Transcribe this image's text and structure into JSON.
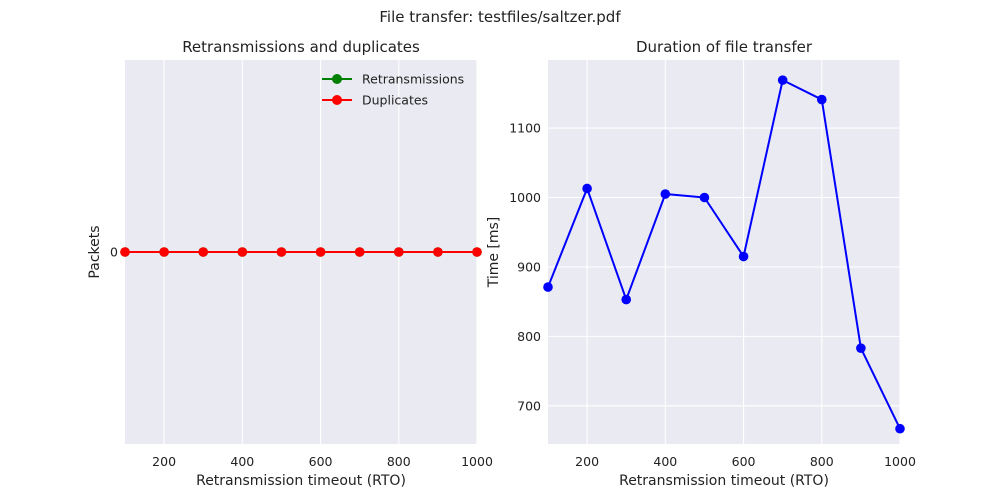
{
  "figure": {
    "suptitle": "File transfer: testfiles/saltzer.pdf"
  },
  "chart_data": [
    {
      "type": "line",
      "title": "Retransmissions and duplicates",
      "xlabel": "Retransmission timeout (RTO)",
      "ylabel": "Packets",
      "x": [
        100,
        200,
        300,
        400,
        500,
        600,
        700,
        800,
        900,
        1000
      ],
      "xlim": [
        100,
        1000
      ],
      "xticks": [
        200,
        400,
        600,
        800,
        1000
      ],
      "ylim": [
        -1,
        1
      ],
      "yticks": [
        0
      ],
      "grid": true,
      "legend_loc": "upper right",
      "series": [
        {
          "name": "Retransmissions",
          "color": "#008000",
          "values": [
            0,
            0,
            0,
            0,
            0,
            0,
            0,
            0,
            0,
            0
          ]
        },
        {
          "name": "Duplicates",
          "color": "#ff0000",
          "values": [
            0,
            0,
            0,
            0,
            0,
            0,
            0,
            0,
            0,
            0
          ]
        }
      ]
    },
    {
      "type": "line",
      "title": "Duration of file transfer",
      "xlabel": "Retransmission timeout (RTO)",
      "ylabel": "Time [ms]",
      "x": [
        100,
        200,
        300,
        400,
        500,
        600,
        700,
        800,
        900,
        1000
      ],
      "xlim": [
        100,
        1000
      ],
      "xticks": [
        200,
        400,
        600,
        800,
        1000
      ],
      "ylim": [
        645,
        1198
      ],
      "yticks": [
        700,
        800,
        900,
        1000,
        1100
      ],
      "grid": true,
      "series": [
        {
          "color": "#0000ff",
          "values": [
            871,
            1013,
            853,
            1005,
            1000,
            915,
            1169,
            1141,
            783,
            667
          ]
        }
      ]
    }
  ]
}
